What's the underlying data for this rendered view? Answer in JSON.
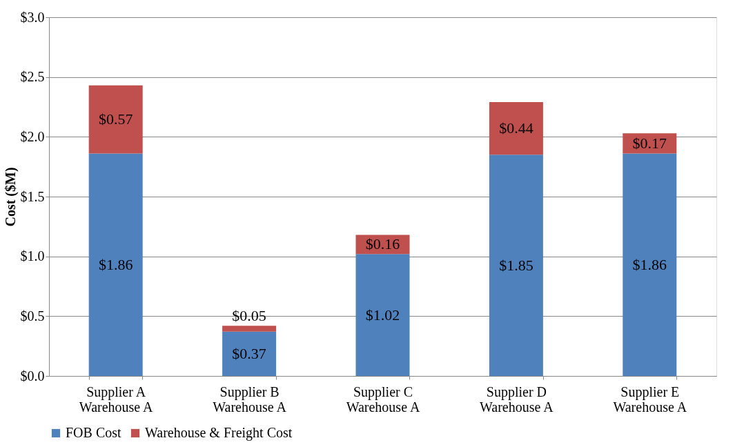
{
  "chart_data": {
    "type": "bar",
    "stacked": true,
    "ylabel": "Cost ($M)",
    "categories": [
      "Supplier A\nWarehouse A",
      "Supplier B\nWarehouse A",
      "Supplier C\nWarehouse A",
      "Supplier D\nWarehouse A",
      "Supplier E\nWarehouse A"
    ],
    "series": [
      {
        "name": "FOB Cost",
        "color": "#4f81bd",
        "values": [
          1.86,
          0.37,
          1.02,
          1.85,
          1.86
        ],
        "value_labels": [
          "$1.86",
          "$0.37",
          "$1.02",
          "$1.85",
          "$1.86"
        ]
      },
      {
        "name": "Warehouse & Freight Cost",
        "color": "#c0504d",
        "values": [
          0.57,
          0.05,
          0.16,
          0.44,
          0.17
        ],
        "value_labels": [
          "$0.57",
          "$0.05",
          "$0.16",
          "$0.44",
          "$0.17"
        ]
      }
    ],
    "ylim": [
      0,
      3
    ],
    "yticks": [
      {
        "value": 0,
        "label": "$0.0"
      },
      {
        "value": 0.5,
        "label": "$0.5"
      },
      {
        "value": 1,
        "label": "$1.0"
      },
      {
        "value": 1.5,
        "label": "$1.5"
      },
      {
        "value": 2,
        "label": "$2.0"
      },
      {
        "value": 2.5,
        "label": "$2.5"
      },
      {
        "value": 3,
        "label": "$3.0"
      }
    ],
    "grid": "y",
    "legend": "bottom"
  }
}
